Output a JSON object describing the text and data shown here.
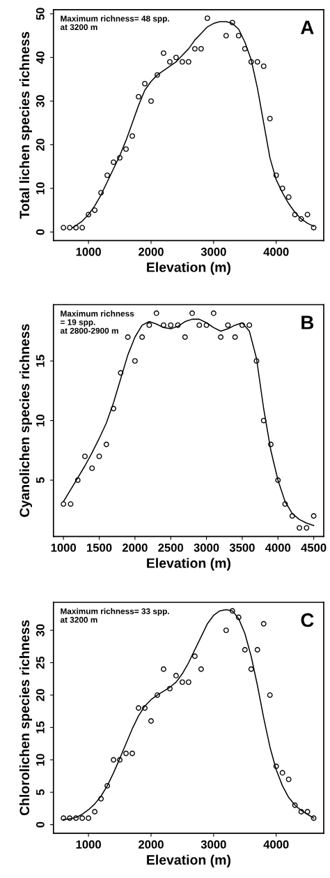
{
  "chart_data": [
    {
      "type": "scatter",
      "xlabel": "Elevation (m)",
      "ylabel": "Total lichen species richness",
      "annotations": [
        "Maximum richness= 48 spp.\nat 3200 m",
        "A"
      ],
      "xlim": [
        440,
        4760
      ],
      "ylim": [
        -1.96,
        50.96
      ],
      "xticks": [
        1000,
        2000,
        3000,
        4000
      ],
      "yticks": [
        0,
        10,
        20,
        30,
        40,
        50
      ],
      "grid": false,
      "legend": false,
      "series": [
        {
          "marker": "circle",
          "color": "#000000",
          "x": [
            600,
            700,
            800,
            900,
            1000,
            1100,
            1200,
            1300,
            1400,
            1500,
            1600,
            1700,
            1800,
            1900,
            2000,
            2100,
            2200,
            2300,
            2400,
            2500,
            2600,
            2700,
            2800,
            2900,
            3200,
            3300,
            3400,
            3500,
            3600,
            3700,
            3800,
            3900,
            4000,
            4100,
            4200,
            4300,
            4400,
            4500,
            4600
          ],
          "values": [
            1,
            1,
            1,
            1,
            4,
            5,
            9,
            13,
            16,
            17,
            19,
            22,
            31,
            34,
            30,
            36,
            41,
            39,
            40,
            39,
            39,
            42,
            42,
            49,
            45,
            48,
            45,
            42,
            39,
            39,
            38,
            26,
            13,
            10,
            8,
            4,
            3,
            4,
            1
          ]
        },
        {
          "type": "line",
          "color": "#000000",
          "line_style": "solid",
          "x": [
            750,
            800,
            900,
            1000,
            1100,
            1200,
            1300,
            1400,
            1500,
            1600,
            1700,
            1800,
            1900,
            2000,
            2100,
            2200,
            2300,
            2400,
            2500,
            2600,
            2700,
            2800,
            2900,
            3000,
            3100,
            3200,
            3300,
            3400,
            3500,
            3600,
            3700,
            3800,
            3900,
            4000,
            4100,
            4200,
            4300,
            4400,
            4500,
            4600
          ],
          "values": [
            1,
            1.5,
            2.5,
            4,
            6,
            8.5,
            11.5,
            14.5,
            17.5,
            21,
            25,
            29,
            32.5,
            34.5,
            36,
            37,
            38,
            39,
            40.5,
            42,
            44,
            45.5,
            47,
            47.8,
            48.2,
            48.2,
            47.8,
            46.5,
            43.5,
            39.5,
            33,
            25,
            17,
            12,
            9,
            6.5,
            4.5,
            3,
            2,
            1.3
          ]
        }
      ]
    },
    {
      "type": "scatter",
      "xlabel": "Elevation (m)",
      "ylabel": "Cyanolichen species richness",
      "annotations": [
        "Maximum richness\n= 19 spp.\nat 2800-2900 m",
        "B"
      ],
      "xlim": [
        860,
        4640
      ],
      "ylim": [
        0.28,
        19.72
      ],
      "xticks": [
        1000,
        1500,
        2000,
        2500,
        3000,
        3500,
        4000,
        4500
      ],
      "yticks": [
        5,
        10,
        15
      ],
      "grid": false,
      "legend": false,
      "series": [
        {
          "marker": "circle",
          "color": "#000000",
          "x": [
            1000,
            1100,
            1200,
            1300,
            1400,
            1500,
            1600,
            1700,
            1800,
            1900,
            2000,
            2100,
            2200,
            2300,
            2400,
            2500,
            2600,
            2700,
            2800,
            2900,
            3000,
            3100,
            3200,
            3300,
            3400,
            3500,
            3600,
            3700,
            3800,
            3900,
            4000,
            4100,
            4200,
            4300,
            4400,
            4500
          ],
          "values": [
            3,
            3,
            5,
            7,
            6,
            7,
            8,
            11,
            14,
            17,
            15,
            17,
            18,
            19,
            18,
            18,
            18,
            17,
            19,
            18,
            18,
            19,
            17,
            18,
            17,
            18,
            18,
            15,
            10,
            8,
            5,
            3,
            2,
            1,
            1,
            2
          ]
        },
        {
          "type": "line",
          "color": "#000000",
          "line_style": "solid",
          "x": [
            1000,
            1100,
            1200,
            1300,
            1400,
            1500,
            1600,
            1700,
            1800,
            1900,
            2000,
            2100,
            2200,
            2300,
            2400,
            2500,
            2600,
            2700,
            2800,
            2900,
            3000,
            3100,
            3200,
            3300,
            3400,
            3500,
            3600,
            3700,
            3800,
            3900,
            4000,
            4100,
            4200,
            4300,
            4400,
            4500
          ],
          "values": [
            3.2,
            4.2,
            5.2,
            6.2,
            7.3,
            8.5,
            9.8,
            11.5,
            13.5,
            15.5,
            17,
            18,
            18.3,
            18.1,
            17.8,
            17.7,
            17.9,
            18.3,
            18.5,
            18.5,
            18.2,
            17.8,
            17.5,
            17.7,
            18,
            18.2,
            17.5,
            15.2,
            11,
            7.5,
            5,
            3.2,
            2.2,
            1.7,
            1.4,
            1.2
          ]
        }
      ]
    },
    {
      "type": "scatter",
      "xlabel": "Elevation (m)",
      "ylabel": "Chlorolichen species richness",
      "annotations": [
        "Maximum richness= 33 spp.\nat 3200 m",
        "C"
      ],
      "xlim": [
        440,
        4760
      ],
      "ylim": [
        -1.32,
        34.32
      ],
      "xticks": [
        1000,
        2000,
        3000,
        4000
      ],
      "yticks": [
        0,
        5,
        10,
        15,
        20,
        25,
        30
      ],
      "grid": false,
      "legend": false,
      "series": [
        {
          "marker": "circle",
          "color": "#000000",
          "x": [
            600,
            700,
            800,
            900,
            1000,
            1100,
            1200,
            1300,
            1400,
            1500,
            1600,
            1700,
            1800,
            1900,
            2000,
            2100,
            2200,
            2300,
            2400,
            2500,
            2600,
            2700,
            2800,
            3200,
            3300,
            3400,
            3500,
            3600,
            3700,
            3800,
            3900,
            4000,
            4100,
            4200,
            4300,
            4400,
            4500,
            4600
          ],
          "values": [
            1,
            1,
            1,
            1,
            1,
            2,
            4,
            6,
            10,
            10,
            11,
            11,
            18,
            18,
            16,
            20,
            24,
            21,
            23,
            22,
            22,
            26,
            24,
            30,
            33,
            32,
            27,
            24,
            27,
            31,
            20,
            9,
            8,
            7,
            3,
            2,
            2,
            1
          ]
        },
        {
          "type": "line",
          "color": "#000000",
          "line_style": "solid",
          "x": [
            600,
            700,
            800,
            900,
            1000,
            1100,
            1200,
            1300,
            1400,
            1500,
            1600,
            1700,
            1800,
            1900,
            2000,
            2100,
            2200,
            2300,
            2400,
            2500,
            2600,
            2700,
            2800,
            2900,
            3000,
            3100,
            3200,
            3300,
            3400,
            3500,
            3600,
            3700,
            3800,
            3900,
            4000,
            4100,
            4200,
            4300,
            4400,
            4500,
            4600
          ],
          "values": [
            0.8,
            0.9,
            1.1,
            1.6,
            2.3,
            3.2,
            4.4,
            6,
            8,
            10.2,
            12.5,
            14.8,
            16.8,
            18.3,
            19.3,
            20,
            20.6,
            21.2,
            22,
            23.3,
            25,
            27,
            29,
            31,
            32.3,
            33,
            33.2,
            33,
            31.8,
            29.5,
            26,
            21.5,
            16.5,
            12,
            8.5,
            6,
            4.2,
            3,
            2.2,
            1.6,
            1
          ]
        }
      ]
    }
  ]
}
